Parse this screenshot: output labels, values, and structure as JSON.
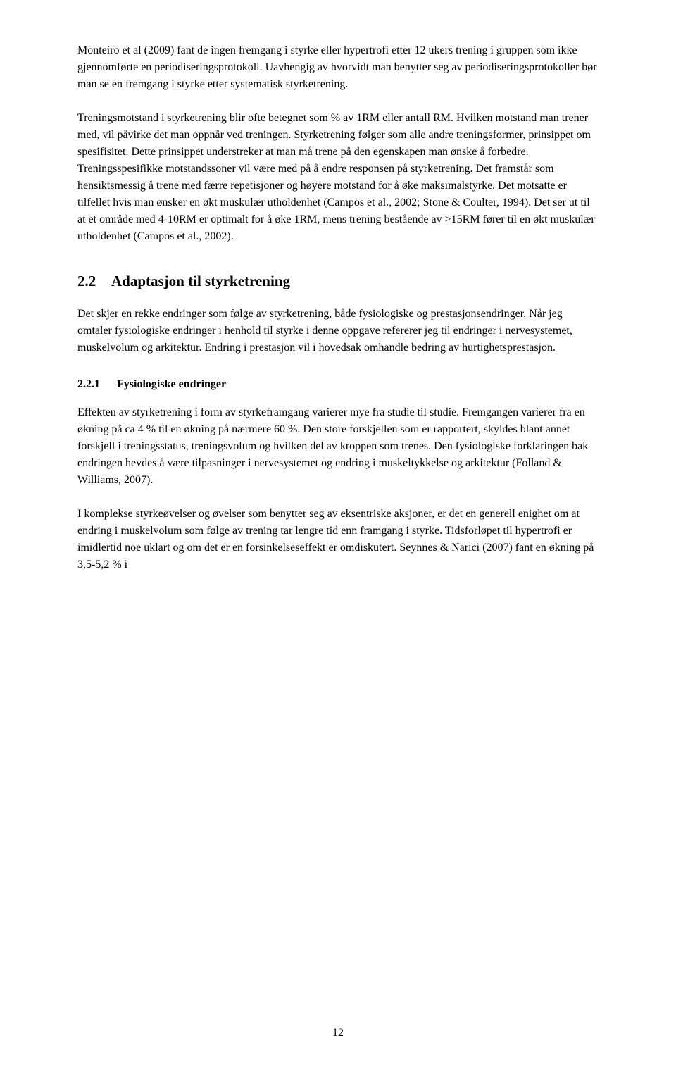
{
  "paragraphs": {
    "p1": "Monteiro et al (2009) fant de ingen fremgang i styrke eller hypertrofi etter 12 ukers trening i gruppen som ikke gjennomførte en periodiseringsprotokoll. Uavhengig av hvorvidt man benytter seg av periodiseringsprotokoller bør man se en fremgang i styrke etter systematisk styrketrening.",
    "p2": "Treningsmotstand i styrketrening blir ofte betegnet som % av 1RM eller antall RM. Hvilken motstand man trener med, vil påvirke det man oppnår ved treningen. Styrketrening følger som alle andre treningsformer, prinsippet om spesifisitet. Dette prinsippet understreker at man må trene på den egenskapen man ønske å forbedre. Treningsspesifikke motstandssoner vil være med på å endre responsen på styrketrening. Det framstår som hensiktsmessig å trene med færre repetisjoner og høyere motstand for å øke maksimalstyrke. Det motsatte er tilfellet hvis man ønsker en økt muskulær utholdenhet (Campos et al., 2002; Stone & Coulter, 1994). Det ser ut til at et område med 4-10RM er optimalt for å øke 1RM, mens trening bestående av >15RM fører til en økt muskulær utholdenhet (Campos et al., 2002).",
    "p3": "Det skjer en rekke endringer som følge av styrketrening, både fysiologiske og prestasjonsendringer. Når jeg omtaler fysiologiske endringer i henhold til styrke i denne oppgave refererer jeg til endringer i nervesystemet, muskelvolum og arkitektur. Endring i prestasjon vil i hovedsak omhandle bedring av hurtighetsprestasjon.",
    "p4": "Effekten av styrketrening i form av styrkeframgang varierer mye fra studie til studie. Fremgangen varierer fra en økning på ca 4 % til en økning på nærmere 60 %. Den store forskjellen som er rapportert, skyldes blant annet forskjell i treningsstatus, treningsvolum og hvilken del av kroppen som trenes. Den fysiologiske forklaringen bak endringen hevdes å være tilpasninger i nervesystemet og endring i muskeltykkelse og arkitektur (Folland & Williams, 2007).",
    "p5": "I komplekse styrkeøvelser og øvelser som benytter seg av eksentriske aksjoner, er det en generell enighet om at endring i muskelvolum som følge av trening tar lengre tid enn framgang i styrke. Tidsforløpet til hypertrofi er imidlertid noe uklart og om det er en forsinkelseseffekt er omdiskutert. Seynnes & Narici (2007) fant en økning på 3,5-5,2 % i"
  },
  "headings": {
    "section_2_2": {
      "number": "2.2",
      "title": "Adaptasjon til styrketrening"
    },
    "subsection_2_2_1": {
      "number": "2.2.1",
      "title": "Fysiologiske endringer"
    }
  },
  "page_number": "12"
}
